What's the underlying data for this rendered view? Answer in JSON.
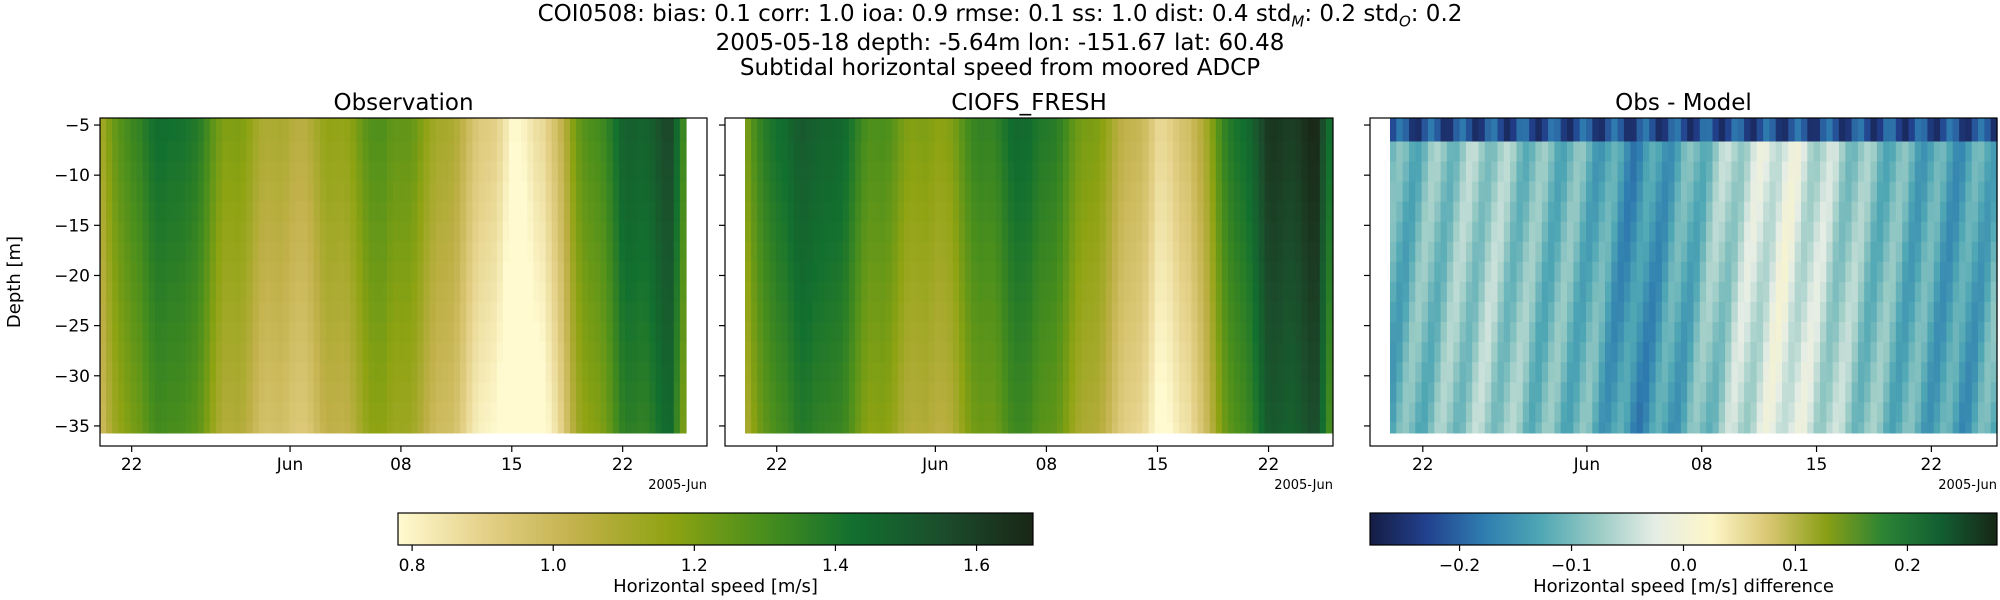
{
  "header": {
    "line1": "COI0508: bias: 0.1  corr: 1.0  ioa: 0.9  rmse: 0.1  ss: 1.0  dist: 0.4  std_M: 0.2  std_O: 0.2",
    "line2": "2005-05-18 depth: -5.64m lon: -151.67 lat: 60.48",
    "line3": "Subtidal horizontal speed from moored ADCP"
  },
  "colors": {
    "speed_cmap": [
      "#fffad0",
      "#e3cf85",
      "#c0b048",
      "#8ea312",
      "#4b8f1c",
      "#12702f",
      "#1b4d2c",
      "#1a2616"
    ],
    "diff_cmap": [
      "#151c44",
      "#22418e",
      "#2f7db0",
      "#4fa7b4",
      "#9acbc5",
      "#e5ede5",
      "#fdf6c8",
      "#d8c671",
      "#8a9f16",
      "#2c8434",
      "#125f33",
      "#172616"
    ]
  },
  "chart_data": [
    {
      "type": "heatmap",
      "title": "Observation",
      "ylabel": "Depth [m]",
      "xlabel": "",
      "x_range": [
        "2005-05-20",
        "2005-06-26"
      ],
      "x_ticks": [
        "22",
        "Jun",
        "08",
        "15",
        "22"
      ],
      "x_tick_dates": [
        "2005-05-22",
        "2005-06-01",
        "2005-06-08",
        "2005-06-15",
        "2005-06-22"
      ],
      "x_offset_label": "2005-Jun",
      "y_range": [
        -37,
        -4.3
      ],
      "y_ticks": [
        -5,
        -10,
        -15,
        -20,
        -25,
        -30,
        -35
      ],
      "depths": [
        -5.64,
        -7.64,
        -9.64,
        -11.64,
        -13.64,
        -15.64,
        -17.64,
        -19.64,
        -21.64,
        -23.64,
        -25.64,
        -27.64,
        -29.64,
        -31.64,
        -33.64,
        -35.64
      ],
      "colorbar": "speed",
      "time_profile": [
        [
          "2005-05-20",
          1.1
        ],
        [
          "2005-05-22",
          1.35
        ],
        [
          "2005-05-25",
          1.45
        ],
        [
          "2005-05-28",
          1.2
        ],
        [
          "2005-06-01",
          1.05
        ],
        [
          "2005-06-04",
          1.15
        ],
        [
          "2005-06-07",
          1.3
        ],
        [
          "2005-06-10",
          1.15
        ],
        [
          "2005-06-13",
          0.95
        ],
        [
          "2005-06-15",
          0.8
        ],
        [
          "2005-06-17",
          0.85
        ],
        [
          "2005-06-19",
          1.2
        ],
        [
          "2005-06-22",
          1.45
        ],
        [
          "2005-06-25",
          1.55
        ],
        [
          "2005-06-26",
          1.3
        ]
      ]
    },
    {
      "type": "heatmap",
      "title": "CIOFS_FRESH",
      "x_range": [
        "2005-05-20",
        "2005-06-26"
      ],
      "x_ticks": [
        "22",
        "Jun",
        "08",
        "15",
        "22"
      ],
      "x_tick_dates": [
        "2005-05-22",
        "2005-06-01",
        "2005-06-08",
        "2005-06-15",
        "2005-06-22"
      ],
      "x_offset_label": "2005-Jun",
      "y_range": [
        -37,
        -4.3
      ],
      "depths": [
        -5.64,
        -7.64,
        -9.64,
        -11.64,
        -13.64,
        -15.64,
        -17.64,
        -19.64,
        -21.64,
        -23.64,
        -25.64,
        -27.64,
        -29.64,
        -31.64,
        -33.64,
        -35.64
      ],
      "colorbar": "speed",
      "time_profile": [
        [
          "2005-05-20",
          1.2
        ],
        [
          "2005-05-22",
          1.45
        ],
        [
          "2005-05-25",
          1.5
        ],
        [
          "2005-05-28",
          1.3
        ],
        [
          "2005-06-01",
          1.15
        ],
        [
          "2005-06-04",
          1.35
        ],
        [
          "2005-06-07",
          1.45
        ],
        [
          "2005-06-10",
          1.25
        ],
        [
          "2005-06-13",
          1.05
        ],
        [
          "2005-06-15",
          0.9
        ],
        [
          "2005-06-17",
          0.95
        ],
        [
          "2005-06-19",
          1.3
        ],
        [
          "2005-06-22",
          1.6
        ],
        [
          "2005-06-25",
          1.65
        ],
        [
          "2005-06-26",
          1.4
        ]
      ]
    },
    {
      "type": "heatmap",
      "title": "Obs - Model",
      "x_range": [
        "2005-05-20",
        "2005-06-26"
      ],
      "x_ticks": [
        "22",
        "Jun",
        "08",
        "15",
        "22"
      ],
      "x_tick_dates": [
        "2005-05-22",
        "2005-06-01",
        "2005-06-08",
        "2005-06-15",
        "2005-06-22"
      ],
      "x_offset_label": "2005-Jun",
      "y_range": [
        -37,
        -4.3
      ],
      "depths": [
        -5.64,
        -7.64,
        -9.64,
        -11.64,
        -13.64,
        -15.64,
        -17.64,
        -19.64,
        -21.64,
        -23.64,
        -25.64,
        -27.64,
        -29.64,
        -31.64,
        -33.64,
        -35.64
      ],
      "colorbar": "diff",
      "surface_diff": -0.22,
      "time_profile": [
        [
          "2005-05-20",
          -0.12
        ],
        [
          "2005-05-23",
          -0.09
        ],
        [
          "2005-05-26",
          -0.07
        ],
        [
          "2005-05-29",
          -0.1
        ],
        [
          "2005-06-01",
          -0.11
        ],
        [
          "2005-06-04",
          -0.16
        ],
        [
          "2005-06-07",
          -0.12
        ],
        [
          "2005-06-10",
          -0.06
        ],
        [
          "2005-06-13",
          -0.02
        ],
        [
          "2005-06-15",
          -0.05
        ],
        [
          "2005-06-18",
          -0.09
        ],
        [
          "2005-06-21",
          -0.12
        ],
        [
          "2005-06-24",
          -0.14
        ],
        [
          "2005-06-26",
          -0.11
        ]
      ]
    }
  ],
  "colorbars": {
    "speed": {
      "label": "Horizontal speed [m/s]",
      "range": [
        0.78,
        1.68
      ],
      "ticks": [
        0.8,
        1.0,
        1.2,
        1.4,
        1.6
      ],
      "tick_labels": [
        "0.8",
        "1.0",
        "1.2",
        "1.4",
        "1.6"
      ]
    },
    "diff": {
      "label": "Horizontal speed [m/s] difference",
      "range": [
        -0.28,
        0.28
      ],
      "ticks": [
        -0.2,
        -0.1,
        0.0,
        0.1,
        0.2
      ],
      "tick_labels": [
        "−0.2",
        "−0.1",
        "0.0",
        "0.1",
        "0.2"
      ]
    }
  }
}
